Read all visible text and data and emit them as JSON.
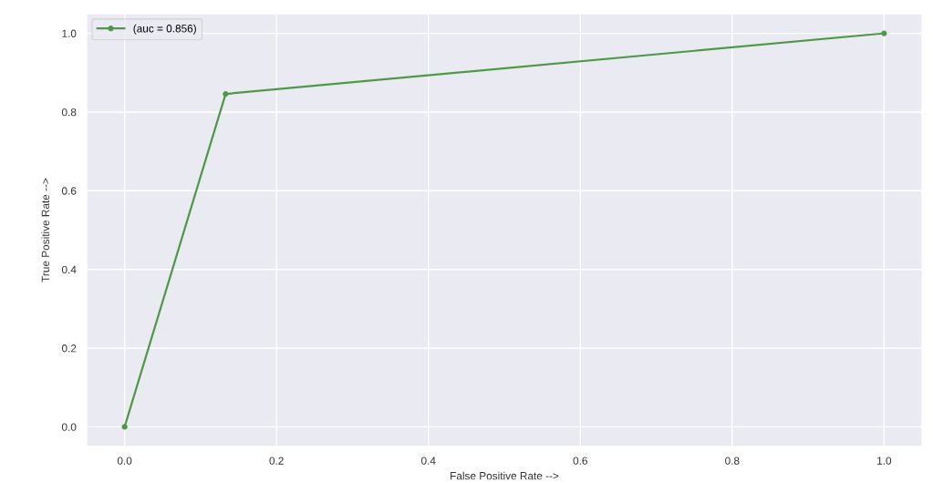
{
  "chart_data": {
    "type": "line",
    "x": [
      0.0,
      0.133,
      1.0
    ],
    "series": [
      {
        "name": "(auc = 0.856)",
        "color": "#4c9a45",
        "values": [
          0.0,
          0.846,
          1.0
        ]
      }
    ],
    "xlabel": "False Positive Rate -->",
    "ylabel": "True Positive Rate -->",
    "xlim": [
      -0.05,
      1.05
    ],
    "ylim": [
      -0.05,
      1.05
    ],
    "xticks": [
      {
        "value": 0.0,
        "label": "0.0"
      },
      0.2,
      0.4,
      0.6,
      0.8,
      {
        "value": 1.0,
        "label": "1.0"
      }
    ],
    "yticks": [
      {
        "value": 0.0,
        "label": "0.0"
      },
      0.2,
      0.4,
      0.6,
      0.8,
      {
        "value": 1.0,
        "label": "1.0"
      }
    ],
    "grid": true,
    "legend": "top left",
    "marker": "circle",
    "line_style": "solid"
  }
}
